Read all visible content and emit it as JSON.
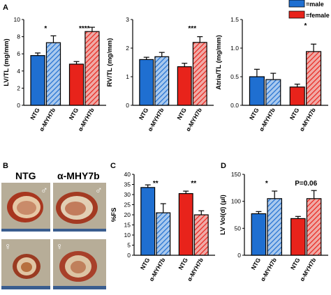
{
  "colors": {
    "male": "#1f6fd1",
    "female": "#e8231b",
    "male_hatch": "#a9c9ee",
    "female_hatch": "#f0aaa6",
    "photo_bg": "#b7ad98",
    "ruler": "#3a5d8f"
  },
  "legend": {
    "male": "=male",
    "female": "=female"
  },
  "panels": {
    "a": "A",
    "b": "B",
    "c": "C",
    "d": "D"
  },
  "photos": {
    "ntg": "NTG",
    "mhy7b": "α-MHY7b",
    "male_symbol": "♂",
    "female_symbol": "♀"
  },
  "chart_data": [
    {
      "type": "bar",
      "panel": "A",
      "ylabel": "LV/TL (mg/mm)",
      "ylim": [
        0,
        10
      ],
      "yticks": [
        0,
        2,
        4,
        6,
        8,
        10
      ],
      "categories": [
        "NTG",
        "α-MYH7b",
        "NTG",
        "α-MYH7b"
      ],
      "groups": [
        "male",
        "male",
        "female",
        "female"
      ],
      "values": [
        5.8,
        7.3,
        4.8,
        8.6
      ],
      "errors": [
        0.3,
        0.8,
        0.3,
        0.5
      ],
      "significance": [
        {
          "group": "male",
          "label": "*"
        },
        {
          "group": "female",
          "label": "****"
        }
      ]
    },
    {
      "type": "bar",
      "panel": "A",
      "ylabel": "RV/TL (mg/mm)",
      "ylim": [
        0,
        3
      ],
      "yticks": [
        0,
        1,
        2,
        3
      ],
      "categories": [
        "NTG",
        "α-MYH7b",
        "NTG",
        "α-MYH7b"
      ],
      "groups": [
        "male",
        "male",
        "female",
        "female"
      ],
      "values": [
        1.6,
        1.7,
        1.35,
        2.2
      ],
      "errors": [
        0.08,
        0.15,
        0.12,
        0.2
      ],
      "significance": [
        {
          "group": "female",
          "label": "***"
        }
      ]
    },
    {
      "type": "bar",
      "panel": "A",
      "ylabel": "Atria/TL (mg/mm)",
      "ylim": [
        0,
        1.5
      ],
      "yticks": [
        0.0,
        0.5,
        1.0,
        1.5
      ],
      "categories": [
        "NTG",
        "α-MYH7b",
        "NTG",
        "α-MYH7b"
      ],
      "groups": [
        "male",
        "male",
        "female",
        "female"
      ],
      "values": [
        0.5,
        0.45,
        0.32,
        0.94
      ],
      "errors": [
        0.13,
        0.11,
        0.05,
        0.13
      ],
      "significance": [
        {
          "group": "female",
          "label": "*"
        }
      ]
    },
    {
      "type": "bar",
      "panel": "C",
      "ylabel": "%FS",
      "ylim": [
        0,
        40
      ],
      "yticks": [
        0,
        5,
        10,
        15,
        20,
        25,
        30,
        35,
        40
      ],
      "categories": [
        "NTG",
        "α-MYH7b",
        "NTG",
        "α-MYH7b"
      ],
      "groups": [
        "male",
        "male",
        "female",
        "female"
      ],
      "values": [
        33.5,
        21,
        30.5,
        20
      ],
      "errors": [
        1.3,
        4.5,
        1.2,
        2
      ],
      "significance": [
        {
          "group": "male",
          "label": "**"
        },
        {
          "group": "female",
          "label": "**"
        }
      ]
    },
    {
      "type": "bar",
      "panel": "D",
      "ylabel": "LV Vol(d) (μl)",
      "ylim": [
        0,
        150
      ],
      "yticks": [
        0,
        50,
        100,
        150
      ],
      "categories": [
        "NTG",
        "α-MYH7b",
        "NTG",
        "α-MYH7b"
      ],
      "groups": [
        "male",
        "male",
        "female",
        "female"
      ],
      "values": [
        77,
        105,
        68,
        105
      ],
      "errors": [
        4,
        14,
        4,
        15
      ],
      "significance": [
        {
          "group": "male",
          "label": "*"
        },
        {
          "group": "female",
          "label": "P=0.06"
        }
      ]
    }
  ]
}
